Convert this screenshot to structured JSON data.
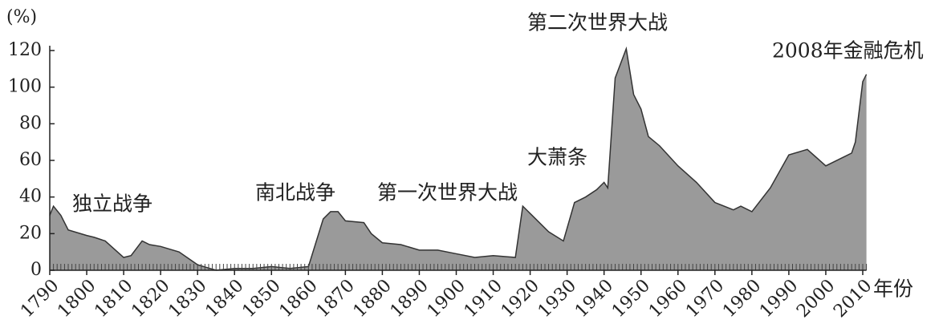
{
  "chart_data": {
    "type": "area",
    "y_unit_label": "(%)",
    "x_label": "年份",
    "annotations": [
      "独立战争",
      "南北战争",
      "第一次世界大战",
      "大萧条",
      "第二次世界大战",
      "2008年金融危机"
    ],
    "x": [
      1790,
      1791,
      1793,
      1795,
      1800,
      1802,
      1805,
      1810,
      1812,
      1815,
      1817,
      1820,
      1825,
      1830,
      1835,
      1840,
      1845,
      1850,
      1855,
      1860,
      1862,
      1864,
      1866,
      1868,
      1870,
      1875,
      1877,
      1880,
      1885,
      1890,
      1895,
      1900,
      1905,
      1910,
      1916,
      1918,
      1919,
      1920,
      1925,
      1929,
      1932,
      1935,
      1938,
      1940,
      1941,
      1943,
      1946,
      1948,
      1950,
      1952,
      1955,
      1960,
      1965,
      1970,
      1975,
      1977,
      1980,
      1985,
      1990,
      1995,
      2000,
      2005,
      2007,
      2008,
      2010,
      2011
    ],
    "values": [
      30,
      35,
      30,
      22,
      19,
      18,
      16,
      7,
      8,
      16,
      14,
      13,
      10,
      3,
      0,
      1,
      1,
      2,
      1,
      2,
      15,
      28,
      32,
      32,
      27,
      26,
      20,
      15,
      14,
      11,
      11,
      9,
      7,
      8,
      7,
      35,
      33,
      31,
      21,
      16,
      37,
      40,
      44,
      48,
      45,
      105,
      121,
      96,
      88,
      73,
      68,
      57,
      48,
      37,
      33,
      35,
      32,
      45,
      63,
      66,
      57,
      62,
      64,
      70,
      103,
      107
    ],
    "color": "#9a9a9a",
    "xlim": [
      1790,
      2011
    ],
    "xticks": [
      1790,
      1800,
      1810,
      1820,
      1830,
      1840,
      1850,
      1860,
      1870,
      1880,
      1890,
      1900,
      1910,
      1920,
      1930,
      1940,
      1950,
      1960,
      1970,
      1980,
      1990,
      2000,
      2010
    ],
    "ylim": [
      0,
      120
    ],
    "yticks": [
      0,
      20,
      40,
      60,
      80,
      100,
      120
    ],
    "grid": false
  }
}
